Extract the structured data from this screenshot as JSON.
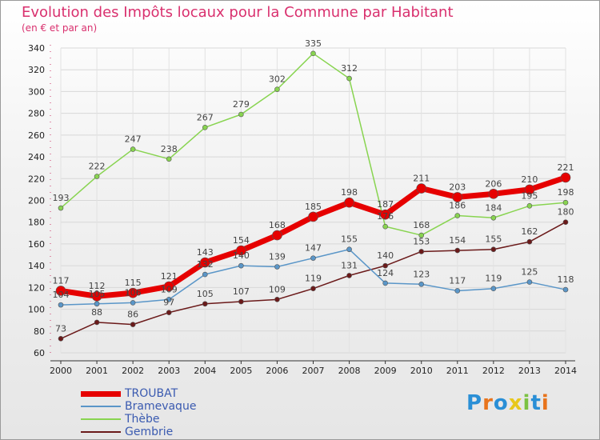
{
  "title": "Evolution des Impôts locaux pour la Commune par Habitant",
  "subtitle": "(en € et par an)",
  "logo": "Proxiti",
  "chart_data": {
    "type": "line",
    "x": [
      2000,
      2001,
      2002,
      2003,
      2004,
      2005,
      2006,
      2007,
      2008,
      2009,
      2010,
      2011,
      2012,
      2013,
      2014
    ],
    "ylim": [
      60,
      340
    ],
    "yticks": [
      60,
      80,
      100,
      120,
      140,
      160,
      180,
      200,
      220,
      240,
      260,
      280,
      300,
      320,
      340
    ],
    "grid": true,
    "legend_position": "bottom-left",
    "series": [
      {
        "name": "Gembrie",
        "color": "#6b1a1a",
        "values": [
          73,
          88,
          86,
          97,
          105,
          107,
          109,
          119,
          131,
          140,
          153,
          154,
          155,
          162,
          180
        ]
      },
      {
        "name": "Bramevaque",
        "color": "#5a96c8",
        "values": [
          104,
          105,
          106,
          109,
          132,
          140,
          139,
          147,
          155,
          124,
          123,
          117,
          119,
          125,
          118
        ]
      },
      {
        "name": "Thèbe",
        "color": "#88d450",
        "values": [
          193,
          222,
          247,
          238,
          267,
          279,
          302,
          335,
          312,
          176,
          168,
          186,
          184,
          195,
          198
        ]
      },
      {
        "name": "TROUBAT",
        "color": "#e60000",
        "values": [
          117,
          112,
          115,
          121,
          143,
          154,
          168,
          185,
          198,
          187,
          211,
          203,
          206,
          210,
          221
        ]
      }
    ],
    "legend_order": [
      "TROUBAT",
      "Bramevaque",
      "Thèbe",
      "Gembrie"
    ]
  }
}
